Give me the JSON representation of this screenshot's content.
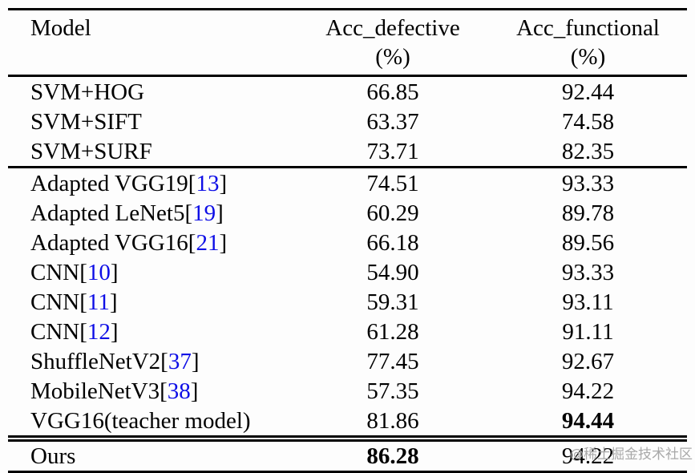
{
  "table": {
    "header": {
      "model": {
        "label": "Model"
      },
      "defective": {
        "label": "Acc_defective",
        "unit": "(%)"
      },
      "functional": {
        "label": "Acc_functional",
        "unit": "(%)"
      }
    },
    "rows": [
      {
        "name_pre": "SVM+HOG",
        "cite": "",
        "name_post": "",
        "acc_defective": "66.85",
        "acc_functional": "92.44",
        "bold_defective": false,
        "bold_functional": false
      },
      {
        "name_pre": "SVM+SIFT",
        "cite": "",
        "name_post": "",
        "acc_defective": "63.37",
        "acc_functional": "74.58",
        "bold_defective": false,
        "bold_functional": false
      },
      {
        "name_pre": "SVM+SURF",
        "cite": "",
        "name_post": "",
        "acc_defective": "73.71",
        "acc_functional": "82.35",
        "bold_defective": false,
        "bold_functional": false
      },
      {
        "name_pre": "Adapted VGG19[",
        "cite": "13",
        "name_post": "]",
        "acc_defective": "74.51",
        "acc_functional": "93.33",
        "bold_defective": false,
        "bold_functional": false
      },
      {
        "name_pre": "Adapted LeNet5[",
        "cite": "19",
        "name_post": "]",
        "acc_defective": "60.29",
        "acc_functional": "89.78",
        "bold_defective": false,
        "bold_functional": false
      },
      {
        "name_pre": "Adapted VGG16[",
        "cite": "21",
        "name_post": "]",
        "acc_defective": "66.18",
        "acc_functional": "89.56",
        "bold_defective": false,
        "bold_functional": false
      },
      {
        "name_pre": "CNN[",
        "cite": "10",
        "name_post": "]",
        "acc_defective": "54.90",
        "acc_functional": "93.33",
        "bold_defective": false,
        "bold_functional": false
      },
      {
        "name_pre": "CNN[",
        "cite": "11",
        "name_post": "]",
        "acc_defective": "59.31",
        "acc_functional": "93.11",
        "bold_defective": false,
        "bold_functional": false
      },
      {
        "name_pre": "CNN[",
        "cite": "12",
        "name_post": "]",
        "acc_defective": "61.28",
        "acc_functional": "91.11",
        "bold_defective": false,
        "bold_functional": false
      },
      {
        "name_pre": "ShuffleNetV2[",
        "cite": "37",
        "name_post": "]",
        "acc_defective": "77.45",
        "acc_functional": "92.67",
        "bold_defective": false,
        "bold_functional": false
      },
      {
        "name_pre": "MobileNetV3[",
        "cite": "38",
        "name_post": "]",
        "acc_defective": "57.35",
        "acc_functional": "94.22",
        "bold_defective": false,
        "bold_functional": false
      },
      {
        "name_pre": "VGG16(teacher model)",
        "cite": "",
        "name_post": "",
        "acc_defective": "81.86",
        "acc_functional": "94.44",
        "bold_defective": false,
        "bold_functional": true
      },
      {
        "name_pre": "Ours",
        "cite": "",
        "name_post": "",
        "acc_defective": "86.28",
        "acc_functional": "94.22",
        "bold_defective": true,
        "bold_functional": false
      }
    ]
  },
  "colors": {
    "citation_blue": "#0e0ee6",
    "text": "#000000",
    "rule": "#000000",
    "watermark_gray": "#a9a9a9"
  },
  "watermark": {
    "text": "@稀土掘金技术社区"
  }
}
